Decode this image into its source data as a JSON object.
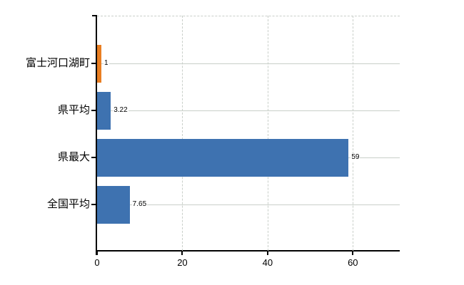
{
  "chart_data": {
    "type": "bar",
    "orientation": "horizontal",
    "title": "",
    "xlabel": "",
    "ylabel": "",
    "categories": [
      "富士河口湖町",
      "県平均",
      "県最大",
      "全国平均"
    ],
    "values": [
      1,
      3.22,
      59,
      7.65
    ],
    "value_labels": [
      "1",
      "3.22",
      "59",
      "7.65"
    ],
    "bar_colors": [
      "#e97e22",
      "#3e72b0",
      "#3e72b0",
      "#3e72b0"
    ],
    "xlim": [
      0,
      71
    ],
    "x_ticks": [
      0,
      20,
      40,
      60
    ],
    "x_tick_labels": [
      "0",
      "20",
      "40",
      "60"
    ],
    "grid": true,
    "gridline_horizontal_style": "solid",
    "gridline_vertical_style": "dashed",
    "legend": false
  },
  "style": {
    "background_color": "#ffffff",
    "axis_color": "#000000",
    "grid_color": "#c9cfc9",
    "text_color": "#000000"
  }
}
